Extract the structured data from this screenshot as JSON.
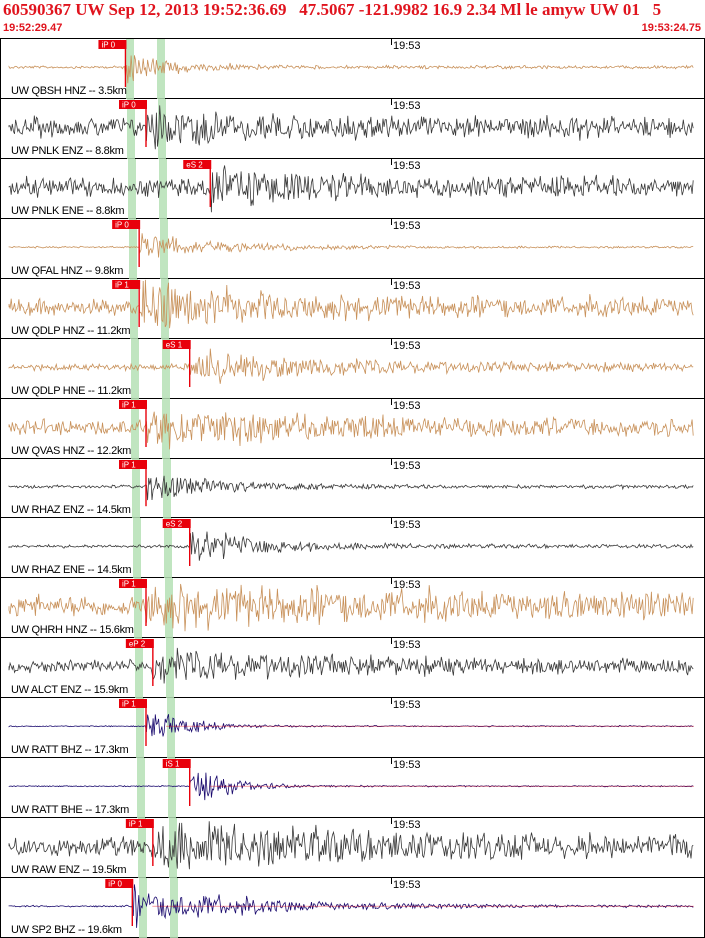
{
  "header": {
    "title": "60590367 UW Sep 12, 2013 19:52:36.69   47.5067 -121.9982 16.9 2.34 Ml le amyw UW 01   5",
    "start_time": "19:52:29.47",
    "end_time": "19:53:24.75"
  },
  "colors": {
    "accent": "#e0141e",
    "trace_tan": "#c8915a",
    "trace_gray": "#3a3a3a",
    "trace_navy": "#1a0a6e",
    "band_green": "#b5e0b5",
    "pick_red": "#e8000b"
  },
  "tick_label": "19:53",
  "channels": [
    {
      "label": "UW QBSH HNZ -- 3.5km",
      "color": "tan",
      "pick_tag": "iP 0",
      "pick_type": "P",
      "onset": 0.17,
      "amp": 0.5,
      "noise": 0.05,
      "decay": 0.07
    },
    {
      "label": "UW PNLK ENZ -- 8.8km",
      "color": "gray",
      "pick_tag": "iP 0",
      "pick_type": "P",
      "onset": 0.2,
      "amp": 0.55,
      "noise": 0.35,
      "decay": 0.1
    },
    {
      "label": "UW PNLK ENE -- 8.8km",
      "color": "gray",
      "pick_tag": "eS 2",
      "pick_type": "S",
      "onset": 0.25,
      "amp": 0.55,
      "noise": 0.35,
      "decay": 0.1
    },
    {
      "label": "UW QFAL HNZ -- 9.8km",
      "color": "tan",
      "pick_tag": "iP 0",
      "pick_type": "P",
      "onset": 0.19,
      "amp": 0.45,
      "noise": 0.03,
      "decay": 0.12
    },
    {
      "label": "UW QDLP HNZ -- 11.2km",
      "color": "tan",
      "pick_tag": "iP 1",
      "pick_type": "P",
      "onset": 0.19,
      "amp": 0.65,
      "noise": 0.3,
      "decay": 0.2
    },
    {
      "label": "UW QDLP HNE -- 11.2km",
      "color": "tan",
      "pick_tag": "eS 1",
      "pick_type": "S",
      "onset": 0.22,
      "amp": 0.5,
      "noise": 0.12,
      "decay": 0.2
    },
    {
      "label": "UW QVAS HNZ -- 12.2km",
      "color": "tan",
      "pick_tag": "iP 1",
      "pick_type": "P",
      "onset": 0.2,
      "amp": 0.45,
      "noise": 0.28,
      "decay": 0.25
    },
    {
      "label": "UW RHAZ ENZ -- 14.5km",
      "color": "gray",
      "pick_tag": "iP 1",
      "pick_type": "P",
      "onset": 0.2,
      "amp": 0.5,
      "noise": 0.06,
      "decay": 0.1
    },
    {
      "label": "UW RHAZ ENE -- 14.5km",
      "color": "gray",
      "pick_tag": "eS 2",
      "pick_type": "S",
      "onset": 0.22,
      "amp": 0.55,
      "noise": 0.06,
      "decay": 0.1
    },
    {
      "label": "UW QHRH HNZ -- 15.6km",
      "color": "tan",
      "pick_tag": "iP 1",
      "pick_type": "P",
      "onset": 0.2,
      "amp": 0.5,
      "noise": 0.4,
      "decay": 0.3
    },
    {
      "label": "UW ALCT ENZ -- 15.9km",
      "color": "gray",
      "pick_tag": "eP 2",
      "pick_type": "P",
      "onset": 0.21,
      "amp": 0.4,
      "noise": 0.22,
      "decay": 0.25
    },
    {
      "label": "UW RATT BHZ -- 17.3km",
      "color": "navy",
      "pick_tag": "iP 1",
      "pick_type": "P",
      "onset": 0.2,
      "amp": 0.6,
      "noise": 0.02,
      "decay": 0.06
    },
    {
      "label": "UW RATT BHE -- 17.3km",
      "color": "navy",
      "pick_tag": "iS 1",
      "pick_type": "S",
      "onset": 0.22,
      "amp": 0.6,
      "noise": 0.02,
      "decay": 0.06
    },
    {
      "label": "UW RAW ENZ -- 19.5km",
      "color": "gray",
      "pick_tag": "iP 1",
      "pick_type": "P",
      "onset": 0.21,
      "amp": 0.55,
      "noise": 0.38,
      "decay": 0.25
    },
    {
      "label": "UW SP2 BHZ -- 19.6km",
      "color": "navy",
      "pick_tag": "iP 0",
      "pick_type": "P",
      "onset": 0.18,
      "amp": 0.6,
      "noise": 0.03,
      "decay": 0.18
    }
  ]
}
